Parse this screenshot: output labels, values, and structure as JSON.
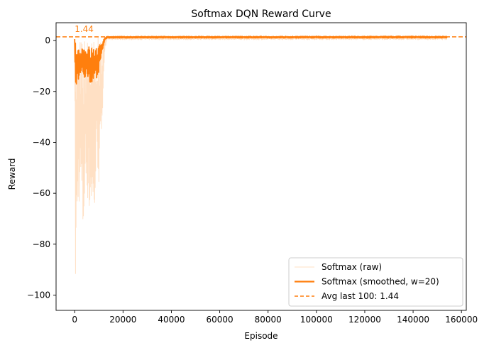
{
  "chart_data": {
    "type": "line",
    "title": "Softmax DQN Reward Curve",
    "xlabel": "Episode",
    "ylabel": "Reward",
    "xlim": [
      -7700,
      162000
    ],
    "ylim": [
      -106,
      7
    ],
    "xticks": [
      0,
      20000,
      40000,
      60000,
      80000,
      100000,
      120000,
      140000,
      160000
    ],
    "xtick_labels": [
      "0",
      "20000",
      "40000",
      "60000",
      "80000",
      "100000",
      "120000",
      "140000",
      "160000"
    ],
    "yticks": [
      0,
      -20,
      -40,
      -60,
      -80,
      -100
    ],
    "ytick_labels": [
      "0",
      "−20",
      "−40",
      "−60",
      "−80",
      "−100"
    ],
    "grid": false,
    "legend_position": "lower-right",
    "x_max": 154000,
    "series": [
      {
        "name": "Softmax (raw)",
        "style": "solid-thin",
        "color": "#ffe0c4",
        "envelope": [
          {
            "x": 0,
            "min": -2,
            "max": 1.5
          },
          {
            "x": 300,
            "min": -101,
            "max": 1.4
          },
          {
            "x": 1500,
            "min": -66,
            "max": 1.3
          },
          {
            "x": 2500,
            "min": -62,
            "max": 1.2
          },
          {
            "x": 3500,
            "min": -83,
            "max": 1.3
          },
          {
            "x": 4500,
            "min": -57,
            "max": 1.2
          },
          {
            "x": 5500,
            "min": -64,
            "max": 1.3
          },
          {
            "x": 6200,
            "min": -71,
            "max": 1.2
          },
          {
            "x": 7000,
            "min": -67,
            "max": 1.3
          },
          {
            "x": 7800,
            "min": -78,
            "max": 1.2
          },
          {
            "x": 8500,
            "min": -67,
            "max": 1.3
          },
          {
            "x": 9200,
            "min": -45,
            "max": 1.2
          },
          {
            "x": 10000,
            "min": -59,
            "max": 1.3
          },
          {
            "x": 10800,
            "min": -48,
            "max": 1.4
          },
          {
            "x": 11600,
            "min": -25,
            "max": 1.5
          },
          {
            "x": 12400,
            "min": -5,
            "max": 1.6
          },
          {
            "x": 13500,
            "min": 0.3,
            "max": 1.6
          },
          {
            "x": 154000,
            "min": 0.3,
            "max": 1.6
          }
        ]
      },
      {
        "name": "Softmax (smoothed, w=20)",
        "style": "solid-thick",
        "color": "#ff7f0e",
        "envelope": [
          {
            "x": 0,
            "min": -2,
            "max": 1
          },
          {
            "x": 300,
            "min": -18,
            "max": -1
          },
          {
            "x": 1000,
            "min": -17,
            "max": -2
          },
          {
            "x": 2000,
            "min": -14,
            "max": -3
          },
          {
            "x": 3000,
            "min": -12,
            "max": -2
          },
          {
            "x": 4000,
            "min": -15,
            "max": -2
          },
          {
            "x": 5000,
            "min": -13,
            "max": -3
          },
          {
            "x": 6000,
            "min": -17,
            "max": -2
          },
          {
            "x": 7000,
            "min": -18,
            "max": -2
          },
          {
            "x": 8000,
            "min": -14,
            "max": -3
          },
          {
            "x": 9000,
            "min": -15,
            "max": -2
          },
          {
            "x": 10000,
            "min": -13,
            "max": -2
          },
          {
            "x": 10800,
            "min": -9,
            "max": -1
          },
          {
            "x": 11500,
            "min": -4,
            "max": 0
          },
          {
            "x": 12400,
            "min": 0,
            "max": 1.4
          },
          {
            "x": 13500,
            "min": 1,
            "max": 1.6
          },
          {
            "x": 154000,
            "min": 1,
            "max": 1.7
          }
        ]
      },
      {
        "name": "Avg last 100: 1.44",
        "style": "dashed",
        "color": "#ff7f0e",
        "y": 1.44
      }
    ],
    "annotations": [
      {
        "text": "1.44",
        "x": 0,
        "y": 1.44,
        "color": "#ff7f0e"
      }
    ]
  }
}
